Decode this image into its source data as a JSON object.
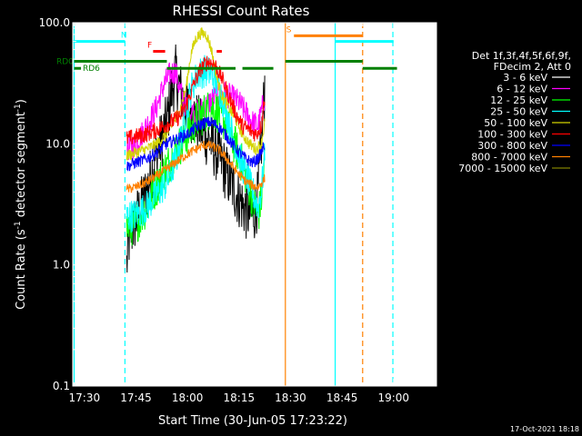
{
  "chart_data": {
    "type": "line",
    "title": "RHESSI Count Rates",
    "xlabel": "Start Time (30-Jun-05 17:23:22)",
    "ylabel_parts": [
      "Count Rate (s",
      "-1",
      " detector segment",
      "-1",
      ")"
    ],
    "ylog": true,
    "ylim": [
      0.1,
      100
    ],
    "xlim_minutes": [
      -3.4,
      102.5
    ],
    "y_ticks": [
      {
        "value": 0.1,
        "label": "0.1"
      },
      {
        "value": 1,
        "label": "1.0"
      },
      {
        "value": 10,
        "label": "10.0"
      },
      {
        "value": 100,
        "label": "100.0"
      }
    ],
    "x_ticks": [
      {
        "value": 0,
        "label": "17:30"
      },
      {
        "value": 15,
        "label": "17:45"
      },
      {
        "value": 30,
        "label": "18:00"
      },
      {
        "value": 45,
        "label": "18:15"
      },
      {
        "value": 60,
        "label": "18:30"
      },
      {
        "value": 75,
        "label": "18:45"
      },
      {
        "value": 90,
        "label": "19:00"
      }
    ],
    "legend": {
      "placement": "right",
      "header": [
        "Det 1f,3f,4f,5f,6f,9f,",
        "FDecim 2, Att 0"
      ],
      "entries": [
        {
          "label": "3 - 6 keV",
          "color": "#ffffff"
        },
        {
          "label": "6 - 12 keV",
          "color": "#ff00ff"
        },
        {
          "label": "12 - 25 keV",
          "color": "#00ff00"
        },
        {
          "label": "25 - 50 keV",
          "color": "#00ffff"
        },
        {
          "label": "50 - 100 keV",
          "color": "#d4d400"
        },
        {
          "label": "100 - 300 keV",
          "color": "#ff0000"
        },
        {
          "label": "300 - 800 keV",
          "color": "#0000ff"
        },
        {
          "label": "800 - 7000 keV",
          "color": "#ff8000"
        },
        {
          "label": "7000 - 15000 keV",
          "color": "#7f7f00"
        }
      ]
    },
    "series": [
      {
        "name": "3 - 6 keV",
        "color": "#000000",
        "noise": 0.5,
        "points": [
          [
            12.3,
            1.0
          ],
          [
            13,
            1.6
          ],
          [
            14,
            2.0
          ],
          [
            16,
            2.8
          ],
          [
            18,
            4.0
          ],
          [
            20,
            6.5
          ],
          [
            22,
            10
          ],
          [
            24,
            15
          ],
          [
            25.5,
            28
          ],
          [
            26.5,
            38
          ],
          [
            27.5,
            30
          ],
          [
            29,
            22
          ],
          [
            31,
            18
          ],
          [
            33,
            15
          ],
          [
            35,
            12
          ],
          [
            37,
            10
          ],
          [
            39,
            8
          ],
          [
            41,
            6
          ],
          [
            43,
            4.5
          ],
          [
            45,
            3.5
          ],
          [
            47,
            2.8
          ],
          [
            49,
            2.5
          ],
          [
            50.5,
            3.5
          ],
          [
            51.5,
            10
          ],
          [
            52.5,
            30
          ]
        ]
      },
      {
        "name": "6 - 12 keV",
        "color": "#ff00ff",
        "noise": 0.22,
        "points": [
          [
            12.3,
            9
          ],
          [
            15,
            10
          ],
          [
            18,
            14
          ],
          [
            21,
            20
          ],
          [
            23,
            30
          ],
          [
            25,
            38
          ],
          [
            26.5,
            40
          ],
          [
            27.5,
            30
          ],
          [
            29,
            22
          ],
          [
            31,
            18
          ],
          [
            33,
            18
          ],
          [
            35,
            20
          ],
          [
            37,
            23
          ],
          [
            39,
            25
          ],
          [
            41,
            26
          ],
          [
            43,
            24
          ],
          [
            45,
            22
          ],
          [
            47,
            18
          ],
          [
            49,
            15
          ],
          [
            50.5,
            14
          ],
          [
            51.5,
            18
          ],
          [
            52.5,
            25
          ]
        ]
      },
      {
        "name": "12 - 25 keV",
        "color": "#00ff00",
        "noise": 0.35,
        "points": [
          [
            12.3,
            2.0
          ],
          [
            15,
            2.2
          ],
          [
            18,
            3.0
          ],
          [
            21,
            4.5
          ],
          [
            24,
            6.5
          ],
          [
            27,
            9
          ],
          [
            30,
            12
          ],
          [
            33,
            16
          ],
          [
            35,
            18
          ],
          [
            37,
            20
          ],
          [
            39,
            18
          ],
          [
            41,
            15
          ],
          [
            43,
            11
          ],
          [
            45,
            8
          ],
          [
            47,
            5.5
          ],
          [
            49,
            3.5
          ],
          [
            50.5,
            2.5
          ],
          [
            51.5,
            3.5
          ],
          [
            52.5,
            8
          ]
        ]
      },
      {
        "name": "25 - 50 keV",
        "color": "#00ffff",
        "noise": 0.28,
        "points": [
          [
            12.3,
            2.5
          ],
          [
            15,
            2.6
          ],
          [
            18,
            3.0
          ],
          [
            21,
            3.8
          ],
          [
            24,
            4.8
          ],
          [
            27,
            8
          ],
          [
            29,
            15
          ],
          [
            31,
            28
          ],
          [
            33,
            38
          ],
          [
            35,
            40
          ],
          [
            37,
            38
          ],
          [
            39,
            30
          ],
          [
            41,
            20
          ],
          [
            43,
            12
          ],
          [
            45,
            8
          ],
          [
            47,
            5.5
          ],
          [
            49,
            4.0
          ],
          [
            50.5,
            3.0
          ],
          [
            51.5,
            4.0
          ],
          [
            52.5,
            8
          ]
        ]
      },
      {
        "name": "50 - 100 keV",
        "color": "#d4d400",
        "noise": 0.1,
        "points": [
          [
            12.3,
            8
          ],
          [
            15,
            8.5
          ],
          [
            18,
            9
          ],
          [
            21,
            10
          ],
          [
            24,
            12
          ],
          [
            26,
            15
          ],
          [
            28,
            20
          ],
          [
            29.5,
            28
          ],
          [
            31,
            55
          ],
          [
            32.5,
            75
          ],
          [
            34,
            82
          ],
          [
            35.5,
            80
          ],
          [
            37,
            60
          ],
          [
            38.5,
            35
          ],
          [
            40,
            25
          ],
          [
            42,
            20
          ],
          [
            44,
            16
          ],
          [
            46,
            12
          ],
          [
            48,
            10
          ],
          [
            50,
            9
          ],
          [
            51.5,
            10
          ],
          [
            52.5,
            15
          ]
        ]
      },
      {
        "name": "100 - 300 keV",
        "color": "#ff0000",
        "noise": 0.14,
        "points": [
          [
            12.3,
            11
          ],
          [
            15,
            11.5
          ],
          [
            18,
            12
          ],
          [
            21,
            13
          ],
          [
            24,
            14.5
          ],
          [
            26,
            15.5
          ],
          [
            28,
            17
          ],
          [
            30,
            22
          ],
          [
            32,
            32
          ],
          [
            34,
            42
          ],
          [
            36,
            48
          ],
          [
            38,
            45
          ],
          [
            40,
            35
          ],
          [
            42,
            25
          ],
          [
            44,
            18
          ],
          [
            46,
            14
          ],
          [
            48,
            13
          ],
          [
            50,
            12
          ],
          [
            51.5,
            14
          ],
          [
            52.5,
            25
          ]
        ]
      },
      {
        "name": "300 - 800 keV",
        "color": "#0000ff",
        "noise": 0.1,
        "points": [
          [
            12.3,
            6.5
          ],
          [
            15,
            7
          ],
          [
            18,
            7.5
          ],
          [
            21,
            8.5
          ],
          [
            24,
            10
          ],
          [
            27,
            11
          ],
          [
            30,
            12
          ],
          [
            33,
            14
          ],
          [
            35,
            15
          ],
          [
            37,
            15
          ],
          [
            39,
            14
          ],
          [
            41,
            12
          ],
          [
            43,
            10
          ],
          [
            45,
            8.5
          ],
          [
            47,
            7.5
          ],
          [
            49,
            7
          ],
          [
            50.5,
            7.5
          ],
          [
            51.5,
            8.5
          ],
          [
            52.5,
            10
          ]
        ]
      },
      {
        "name": "800 - 7000 keV",
        "color": "#ff8000",
        "noise": 0.08,
        "points": [
          [
            12.3,
            4.2
          ],
          [
            15,
            4.4
          ],
          [
            18,
            4.8
          ],
          [
            21,
            5.4
          ],
          [
            24,
            6.2
          ],
          [
            27,
            7.2
          ],
          [
            30,
            8.2
          ],
          [
            33,
            9.2
          ],
          [
            35,
            9.8
          ],
          [
            37,
            9.6
          ],
          [
            39,
            9
          ],
          [
            41,
            7.8
          ],
          [
            43,
            6.6
          ],
          [
            45,
            5.6
          ],
          [
            47,
            4.9
          ],
          [
            49,
            4.5
          ],
          [
            50.5,
            4.4
          ],
          [
            51.5,
            4.7
          ],
          [
            52.5,
            5.2
          ]
        ]
      }
    ],
    "markers": [
      {
        "label": "N",
        "color": "#00ffff",
        "label_x": 11.5,
        "segments": [
          [
            -3.4,
            11.8
          ],
          [
            73,
            90
          ]
        ],
        "level": 70
      },
      {
        "label": "F",
        "color": "#ff0000",
        "label_x": 19,
        "segments": [
          [
            20,
            23.5
          ],
          [
            38.5,
            40
          ]
        ],
        "level": 58
      },
      {
        "label": "S",
        "color": "#ff8000",
        "label_x": 59.5,
        "segments": [
          [
            61,
            81
          ]
        ],
        "level": 78
      }
    ],
    "rd_markers": [
      {
        "label": "RD0",
        "color": "#008000",
        "segments": [
          [
            -3,
            24
          ],
          [
            58.5,
            81
          ]
        ],
        "level": 48
      },
      {
        "label": "RD6",
        "color": "#008000",
        "segments": [
          [
            -3,
            -1
          ],
          [
            24,
            44
          ],
          [
            46,
            55
          ],
          [
            81,
            91
          ]
        ],
        "level": 42
      }
    ],
    "vlines": [
      {
        "x": -3.0,
        "color": "#00ffff",
        "dash": false
      },
      {
        "x": 11.8,
        "color": "#00ffff",
        "dash": true
      },
      {
        "x": 58.5,
        "color": "#ff8000",
        "dash": false
      },
      {
        "x": 73.0,
        "color": "#00ffff",
        "dash": false
      },
      {
        "x": 81.0,
        "color": "#ff8000",
        "dash": true
      },
      {
        "x": 89.8,
        "color": "#00ffff",
        "dash": true
      }
    ],
    "footer": "17-Oct-2021 18:18"
  }
}
